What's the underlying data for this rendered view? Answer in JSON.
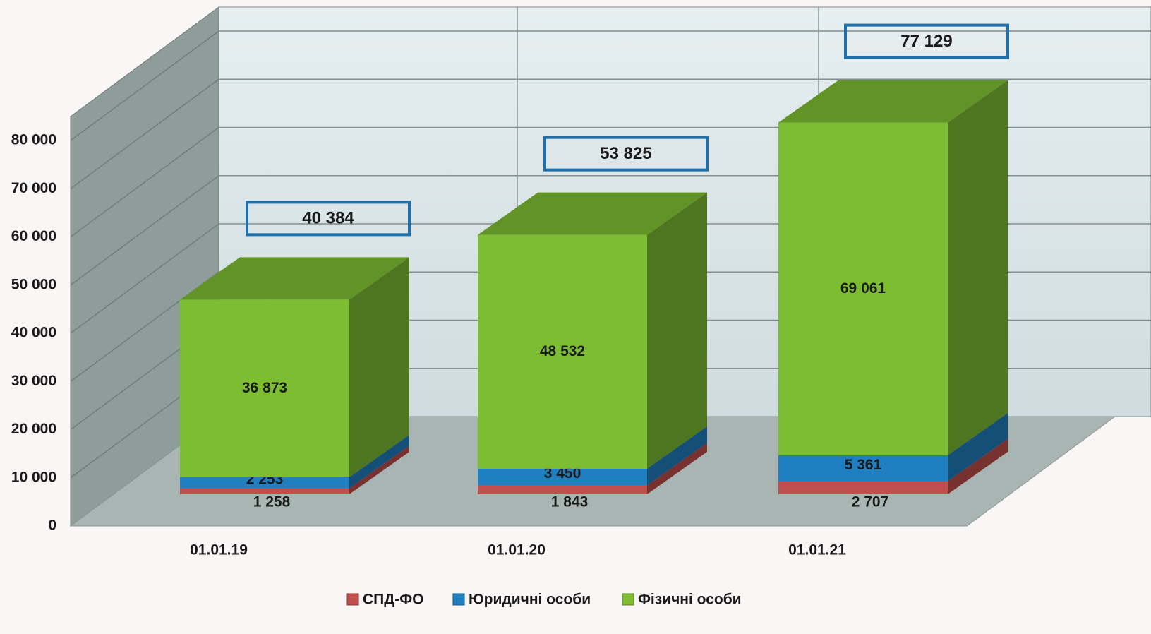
{
  "chart_data": {
    "type": "bar3d_stacked",
    "categories": [
      "01.01.19",
      "01.01.20",
      "01.01.21"
    ],
    "series": [
      {
        "name": "СПД-ФО",
        "color": "#c0504d",
        "values": [
          1258,
          1843,
          2707
        ],
        "value_labels": [
          "1 258",
          "1 843",
          "2 707"
        ]
      },
      {
        "name": "Юридичні особи",
        "color": "#1f7fc0",
        "values": [
          2253,
          3450,
          5361
        ],
        "value_labels": [
          "2 253",
          "3 450",
          "5 361"
        ]
      },
      {
        "name": "Фізичні особи",
        "color": "#7dbd32",
        "values": [
          36873,
          48532,
          69061
        ],
        "value_labels": [
          "36 873",
          "48 532",
          "69 061"
        ]
      }
    ],
    "totals": [
      40384,
      53825,
      77129
    ],
    "total_labels": [
      "40 384",
      "53 825",
      "77 129"
    ],
    "ylim": [
      0,
      80000
    ],
    "yticks": [
      0,
      {
        "value": 10000,
        "label": "10 000"
      },
      {
        "value": 20000,
        "label": "20 000"
      },
      {
        "value": 30000,
        "label": "30 000"
      },
      {
        "value": 40000,
        "label": "40 000"
      },
      {
        "value": 50000,
        "label": "50 000"
      },
      {
        "value": 60000,
        "label": "60 000"
      },
      {
        "value": 70000,
        "label": "70 000"
      },
      {
        "value": 80000,
        "label": "80 000"
      }
    ],
    "grid": true
  }
}
